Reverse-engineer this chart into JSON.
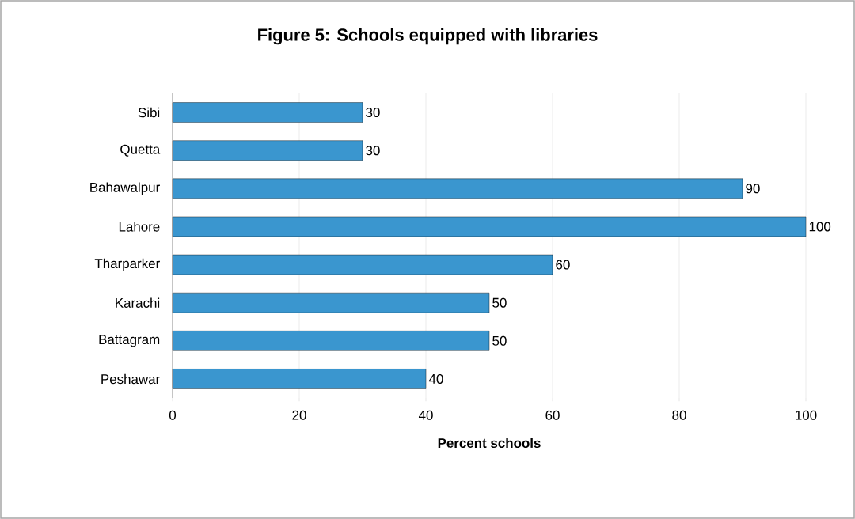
{
  "chart_data": {
    "type": "bar",
    "orientation": "horizontal",
    "title": "Figure 5: Schools equipped with libraries",
    "xlabel": "Percent schools",
    "categories": [
      "Sibi",
      "Quetta",
      "Bahawalpur",
      "Lahore",
      "Tharparker",
      "Karachi",
      "Battagram",
      "Peshawar"
    ],
    "values": [
      30,
      30,
      90,
      100,
      60,
      50,
      50,
      40
    ],
    "color": "#3a96cf",
    "xlim": [
      0,
      100
    ],
    "xticks": [
      0,
      20,
      40,
      60,
      80,
      100
    ],
    "grid": "x",
    "data_labels": true
  }
}
